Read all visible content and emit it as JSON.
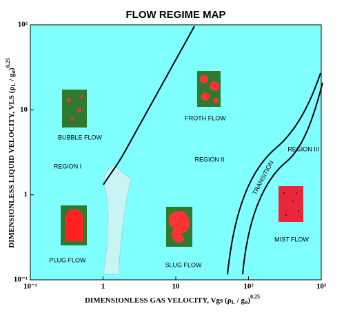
{
  "chart_data": {
    "type": "regime-map",
    "title": "FLOW REGIME MAP",
    "x_label": [
      "DIMENSIONLESS GAS VELOCITY, Vgs (ρ",
      "L",
      " / g",
      "σ",
      ")",
      "0.25"
    ],
    "y_label": [
      "DIMENSIONLESS LIQUID VELOCITY, VLS (ρ",
      "L",
      " / g",
      "σ",
      ")",
      "0.25"
    ],
    "xscale": "log",
    "yscale": "log",
    "xlim": [
      0.1,
      1000
    ],
    "ylim": [
      0.1,
      100
    ],
    "xticks": [
      {
        "value": 0.1,
        "label": "10⁻¹"
      },
      1,
      10,
      {
        "value": 100,
        "label": "10²"
      },
      {
        "value": 1000,
        "label": "10³"
      }
    ],
    "yticks": [
      {
        "value": 0.1,
        "label": "10⁻¹"
      },
      1,
      10,
      {
        "value": 100,
        "label": "10²"
      }
    ],
    "annotations": [
      "BUBBLE FLOW",
      "REGION I",
      "PLUG FLOW",
      "SLUG FLOW",
      "FROTH FLOW",
      "REGION II",
      "TRANSITION",
      "REGION III",
      "MIST FLOW"
    ],
    "background": "#80ffff"
  }
}
